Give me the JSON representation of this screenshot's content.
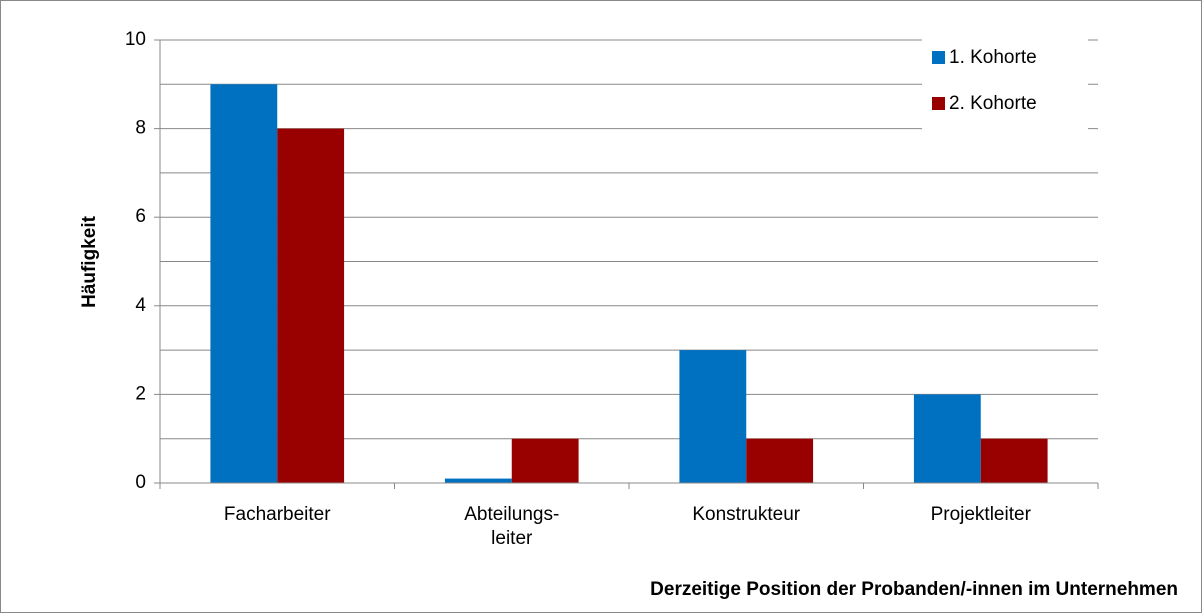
{
  "chart_data": {
    "type": "bar",
    "x_label": "Derzeitige Position der Probanden/-innen  im Unternehmen",
    "y_label": "Häufigkeit",
    "categories": [
      "Facharbeiter",
      "Abteilungs-\nleiter",
      "Konstrukteur",
      "Projektleiter"
    ],
    "series": [
      {
        "name": "1. Kohorte",
        "color": "#0070c0",
        "values": [
          9,
          0.1,
          3,
          2
        ]
      },
      {
        "name": "2. Kohorte",
        "color": "#990000",
        "values": [
          8,
          1,
          1,
          1
        ]
      }
    ],
    "ylim": [
      0,
      10
    ],
    "yticks": [
      0,
      2,
      4,
      6,
      8,
      10
    ],
    "minor_yticks": [
      1,
      3,
      5,
      7,
      9
    ],
    "grid": true,
    "legend": "top-right"
  }
}
